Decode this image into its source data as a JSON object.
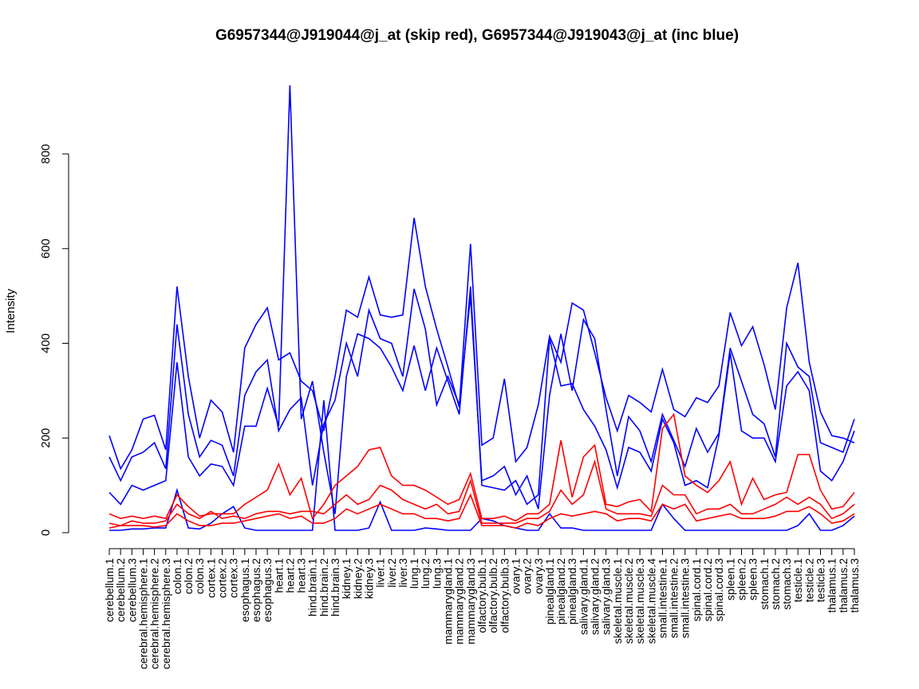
{
  "chart_data": {
    "type": "line",
    "title": "G6957344@J919044@j_at (skip red), G6957344@J919043@j_at (inc blue)",
    "xlabel": "",
    "ylabel": "Intensity",
    "ylim": [
      0,
      800
    ],
    "yticks": [
      0,
      200,
      400,
      600,
      800
    ],
    "grid": false,
    "categories": [
      "cerebellum.1",
      "cerebellum.2",
      "cerebellum.3",
      "cerebral.hemisphere.1",
      "cerebral.hemisphere.2",
      "cerebral.hemisphere.3",
      "colon.1",
      "colon.2",
      "colon.3",
      "cortex.1",
      "cortex.2",
      "cortex.3",
      "esophagus.1",
      "esophagus.2",
      "esophagus.3",
      "heart.1",
      "heart.2",
      "heart.3",
      "hind.brain.1",
      "hind.brain.2",
      "hind.brain.3",
      "kidney.1",
      "kidney.2",
      "kidney.3",
      "liver.1",
      "liver.2",
      "liver.3",
      "lung.1",
      "lung.2",
      "lung.3",
      "mammarygland.1",
      "mammarygland.2",
      "mammarygland.3",
      "olfactory.bulb.1",
      "olfactory.bulb.2",
      "olfactory.bulb.3",
      "ovary.1",
      "ovary.2",
      "ovary.3",
      "pinealgland.1",
      "pinealgland.2",
      "pinealgland.3",
      "salivary.gland.1",
      "salivary.gland.2",
      "salivary.gland.3",
      "skeletal.muscle.1",
      "skeletal.muscle.2",
      "skeletal.muscle.3",
      "skeletal.muscle.4",
      "small.intestine.1",
      "small.intestine.2",
      "small.intestine.3",
      "spinal.cord.1",
      "spinal.cord.2",
      "spinal.cord.3",
      "spleen.1",
      "spleen.2",
      "spleen.3",
      "stomach.1",
      "stomach.2",
      "stomach.3",
      "testicle.1",
      "testicle.2",
      "testicle.3",
      "thalamus.1",
      "thalamus.2",
      "thalamus.3"
    ],
    "series": [
      {
        "name": "inc blue 1",
        "color": "#0000ff",
        "values": [
          205,
          135,
          175,
          240,
          248,
          175,
          520,
          330,
          200,
          280,
          255,
          170,
          390,
          440,
          475,
          365,
          380,
          320,
          300,
          215,
          330,
          470,
          455,
          540,
          460,
          455,
          460,
          665,
          520,
          430,
          350,
          265,
          610,
          185,
          200,
          325,
          150,
          180,
          270,
          415,
          360,
          485,
          470,
          380,
          285,
          215,
          290,
          275,
          255,
          345,
          260,
          245,
          285,
          275,
          310,
          465,
          395,
          435,
          355,
          260,
          475,
          570,
          360,
          255,
          205,
          200,
          190
        ]
      },
      {
        "name": "inc blue 2",
        "color": "#0000ff",
        "values": [
          160,
          110,
          160,
          170,
          190,
          135,
          440,
          250,
          160,
          195,
          185,
          120,
          290,
          340,
          365,
          215,
          260,
          285,
          100,
          230,
          280,
          400,
          330,
          470,
          410,
          400,
          330,
          515,
          430,
          270,
          330,
          270,
          500,
          110,
          120,
          140,
          80,
          120,
          50,
          290,
          420,
          300,
          450,
          410,
          260,
          120,
          245,
          215,
          150,
          250,
          195,
          140,
          220,
          170,
          210,
          390,
          320,
          250,
          230,
          160,
          400,
          350,
          330,
          190,
          180,
          170,
          240
        ]
      },
      {
        "name": "inc blue 3",
        "color": "#0000ff",
        "values": [
          85,
          60,
          100,
          90,
          100,
          110,
          360,
          160,
          120,
          145,
          140,
          100,
          225,
          225,
          305,
          225,
          945,
          240,
          320,
          170,
          40,
          330,
          420,
          410,
          390,
          350,
          300,
          395,
          300,
          390,
          320,
          250,
          520,
          100,
          95,
          90,
          110,
          60,
          80,
          410,
          310,
          315,
          260,
          225,
          175,
          95,
          180,
          170,
          130,
          240,
          190,
          100,
          110,
          95,
          205,
          380,
          215,
          200,
          200,
          150,
          310,
          340,
          300,
          130,
          110,
          150,
          215
        ]
      },
      {
        "name": "inc blue 4",
        "color": "#0000ff",
        "values": [
          5,
          5,
          8,
          8,
          10,
          10,
          90,
          10,
          8,
          20,
          40,
          55,
          10,
          5,
          5,
          5,
          5,
          5,
          5,
          280,
          5,
          5,
          5,
          10,
          65,
          5,
          5,
          5,
          10,
          8,
          5,
          5,
          5,
          30,
          25,
          15,
          10,
          5,
          5,
          40,
          10,
          10,
          5,
          5,
          5,
          5,
          5,
          5,
          5,
          60,
          30,
          5,
          5,
          5,
          5,
          5,
          5,
          5,
          5,
          5,
          5,
          15,
          40,
          5,
          5,
          15,
          35
        ]
      },
      {
        "name": "skip red 1",
        "color": "#ff0000",
        "values": [
          40,
          30,
          35,
          30,
          35,
          30,
          80,
          55,
          35,
          40,
          40,
          40,
          60,
          75,
          90,
          145,
          80,
          115,
          30,
          60,
          100,
          120,
          140,
          175,
          180,
          120,
          100,
          100,
          90,
          75,
          60,
          70,
          125,
          30,
          30,
          35,
          25,
          40,
          40,
          60,
          195,
          75,
          160,
          185,
          60,
          55,
          65,
          70,
          45,
          220,
          250,
          120,
          100,
          85,
          110,
          150,
          60,
          115,
          70,
          80,
          85,
          165,
          165,
          90,
          50,
          55,
          85
        ]
      },
      {
        "name": "skip red 2",
        "color": "#ff0000",
        "values": [
          20,
          15,
          25,
          20,
          20,
          25,
          60,
          40,
          30,
          45,
          30,
          35,
          30,
          40,
          45,
          45,
          40,
          45,
          45,
          40,
          60,
          80,
          60,
          70,
          100,
          90,
          70,
          60,
          50,
          60,
          40,
          45,
          110,
          20,
          20,
          20,
          20,
          30,
          30,
          45,
          90,
          60,
          80,
          150,
          50,
          40,
          40,
          40,
          35,
          100,
          80,
          80,
          40,
          50,
          50,
          60,
          40,
          40,
          50,
          60,
          75,
          60,
          75,
          60,
          30,
          40,
          60
        ]
      },
      {
        "name": "skip red 3",
        "color": "#ff0000",
        "values": [
          10,
          15,
          15,
          15,
          12,
          15,
          40,
          25,
          15,
          15,
          20,
          20,
          25,
          30,
          35,
          40,
          30,
          35,
          20,
          20,
          30,
          50,
          40,
          50,
          60,
          50,
          40,
          40,
          30,
          30,
          25,
          30,
          80,
          15,
          15,
          15,
          10,
          20,
          15,
          30,
          40,
          35,
          40,
          45,
          40,
          25,
          30,
          30,
          25,
          60,
          50,
          60,
          25,
          30,
          35,
          40,
          30,
          30,
          30,
          35,
          45,
          45,
          55,
          40,
          20,
          25,
          40
        ]
      }
    ]
  }
}
